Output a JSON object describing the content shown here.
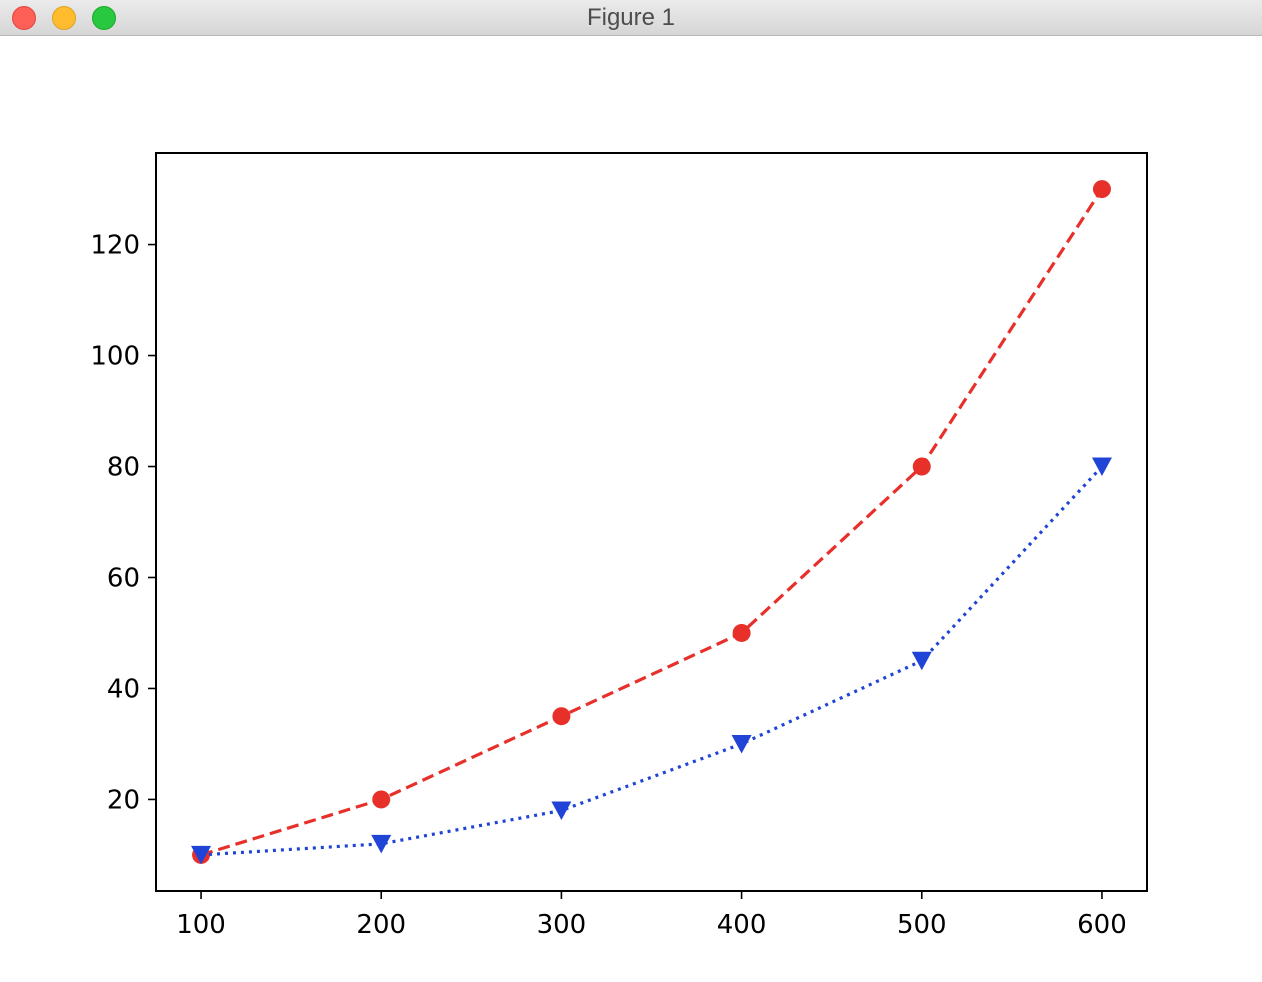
{
  "window": {
    "title": "Figure 1"
  },
  "chart_data": {
    "type": "line",
    "title": "",
    "xlabel": "",
    "ylabel": "",
    "x": [
      100,
      200,
      300,
      400,
      500,
      600
    ],
    "xlim": [
      75,
      625
    ],
    "ylim": [
      3.5,
      136.5
    ],
    "xticks": [
      100,
      200,
      300,
      400,
      500,
      600
    ],
    "yticks": [
      20,
      40,
      60,
      80,
      100,
      120
    ],
    "grid": false,
    "series": [
      {
        "values": [
          10,
          20,
          35,
          50,
          80,
          130
        ],
        "color": "#e8302b",
        "line_style": "dashed",
        "marker": "circle"
      },
      {
        "values": [
          10,
          12,
          18,
          30,
          45,
          80
        ],
        "color": "#1f44d6",
        "line_style": "dotted",
        "marker": "triangle-down"
      }
    ]
  }
}
